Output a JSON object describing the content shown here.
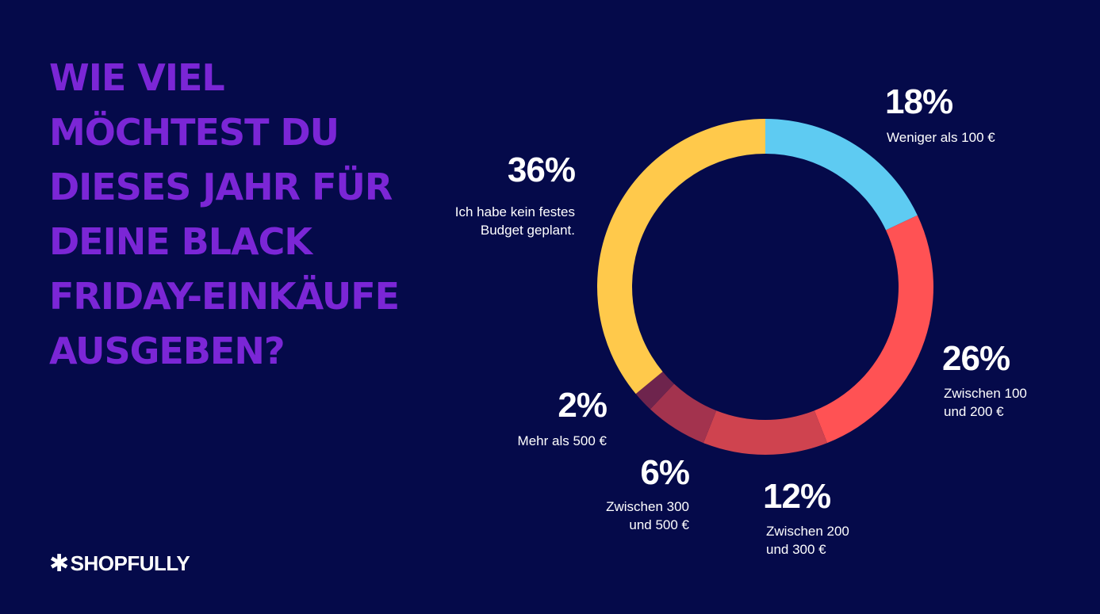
{
  "title_lines": [
    "Wie viel",
    "möchtest du",
    "dieses Jahr für",
    "deine Black",
    "Friday-Einkäufe",
    "ausgeben?"
  ],
  "brand": {
    "name": "SHOPFULLY",
    "icon": "asterisk-icon"
  },
  "chart_data": {
    "type": "pie",
    "variant": "donut",
    "title": "Wie viel möchtest du dieses Jahr für deine Black Friday-Einkäufe ausgeben?",
    "slices": [
      {
        "pct_label": "18%",
        "value": 18,
        "desc": "Weniger als 100 €",
        "color": "#5ecbf2"
      },
      {
        "pct_label": "26%",
        "value": 26,
        "desc": "Zwischen 100\nund 200 €",
        "color": "#ff5254"
      },
      {
        "pct_label": "12%",
        "value": 12,
        "desc": "Zwischen 200\nund 300 €",
        "color": "#cf434f"
      },
      {
        "pct_label": "6%",
        "value": 6,
        "desc": "Zwischen 300\nund 500 €",
        "color": "#a3334e"
      },
      {
        "pct_label": "2%",
        "value": 2,
        "desc": "Mehr als 500 €",
        "color": "#6e244d"
      },
      {
        "pct_label": "36%",
        "value": 36,
        "desc": "Ich habe kein festes\nBudget geplant.",
        "color": "#ffc94b"
      }
    ],
    "colors": {
      "background": "#050a4a",
      "title": "#7b26d6",
      "text": "#ffffff"
    }
  }
}
